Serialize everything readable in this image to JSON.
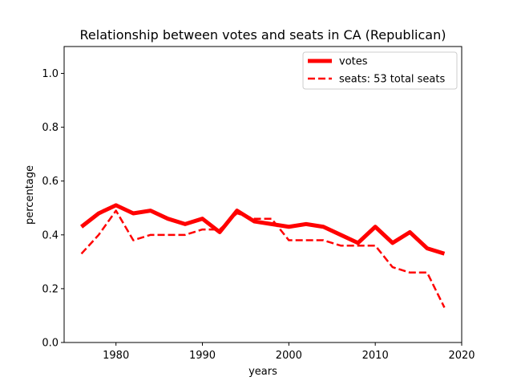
{
  "chart_data": {
    "type": "line",
    "title": "Relationship between votes and seats in CA (Republican)",
    "xlabel": "years",
    "ylabel": "percentage",
    "xlim": [
      1974,
      2020
    ],
    "ylim": [
      0.0,
      1.1
    ],
    "xticks": [
      1980,
      1990,
      2000,
      2010,
      2020
    ],
    "yticks": [
      0.0,
      0.2,
      0.4,
      0.6,
      0.8,
      1.0
    ],
    "grid": false,
    "legend_position": "top-right",
    "series": [
      {
        "name": "votes",
        "color": "#ff0000",
        "style": "solid",
        "x": [
          1976,
          1978,
          1980,
          1982,
          1984,
          1986,
          1988,
          1990,
          1992,
          1994,
          1996,
          1998,
          2000,
          2002,
          2004,
          2006,
          2008,
          2010,
          2012,
          2014,
          2016,
          2018
        ],
        "y": [
          0.43,
          0.48,
          0.51,
          0.48,
          0.49,
          0.46,
          0.44,
          0.46,
          0.41,
          0.49,
          0.45,
          0.44,
          0.43,
          0.44,
          0.43,
          0.4,
          0.37,
          0.43,
          0.37,
          0.41,
          0.35,
          0.33
        ]
      },
      {
        "name": "seats: 53 total seats",
        "color": "#ff0000",
        "style": "dashed",
        "x": [
          1976,
          1978,
          1980,
          1982,
          1984,
          1986,
          1988,
          1990,
          1992,
          1994,
          1996,
          1998,
          2000,
          2002,
          2004,
          2006,
          2008,
          2010,
          2012,
          2014,
          2016,
          2018
        ],
        "y": [
          0.33,
          0.4,
          0.49,
          0.38,
          0.4,
          0.4,
          0.4,
          0.42,
          0.42,
          0.48,
          0.46,
          0.46,
          0.38,
          0.38,
          0.38,
          0.36,
          0.36,
          0.36,
          0.28,
          0.26,
          0.26,
          0.13
        ]
      }
    ]
  }
}
